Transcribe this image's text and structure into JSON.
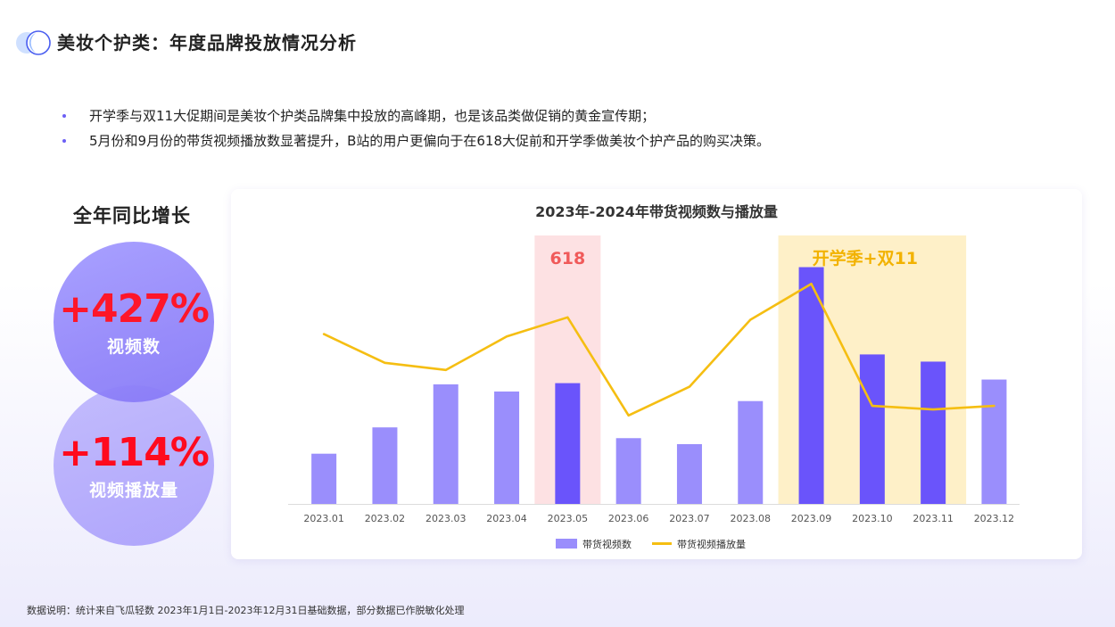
{
  "page": {
    "title": "美妆个护类：年度品牌投放情况分析",
    "bullets": [
      "开学季与双11大促期间是美妆个护类品牌集中投放的高峰期，也是该品类做促销的黄金宣传期；",
      "5月份和9月份的带货视频播放数显著提升，B站的用户更偏向于在618大促前和开学季做美妆个护产品的购买决策。"
    ],
    "footnote": "数据说明：统计来自飞瓜轻数 2023年1月1日-2023年12月31日基础数据，部分数据已作脱敏化处理"
  },
  "growth": {
    "title": "全年同比增长",
    "metrics": [
      {
        "value": "+427%",
        "label": "视频数"
      },
      {
        "value": "+114%",
        "label": "视频播放量"
      }
    ]
  },
  "colors": {
    "bar": "#9a8efc",
    "bar_highlight": "#6a54fb",
    "line": "#f5be12",
    "band_618": "#fde1e3",
    "band_school": "#fef0c8",
    "annotation_618": "#f05a5a",
    "annotation_school": "#f2b200",
    "value_red": "#ff0a1e"
  },
  "chart_data": {
    "type": "bar",
    "title": "2023年-2024年带货视频数与播放量",
    "categories": [
      "2023.01",
      "2023.02",
      "2023.03",
      "2023.04",
      "2023.05",
      "2023.06",
      "2023.07",
      "2023.08",
      "2023.09",
      "2023.10",
      "2023.11",
      "2023.12"
    ],
    "series": [
      {
        "name": "带货视频数",
        "type": "bar",
        "values": [
          21,
          32,
          50,
          47,
          50.5,
          27.5,
          25,
          43,
          99,
          62.5,
          59.5,
          52
        ],
        "highlight": [
          false,
          false,
          false,
          false,
          true,
          false,
          false,
          false,
          true,
          true,
          true,
          false
        ]
      },
      {
        "name": "带货视频播放量",
        "type": "line",
        "values": [
          71,
          59,
          56,
          70,
          78,
          37,
          49,
          77,
          92,
          41,
          39.5,
          41
        ]
      }
    ],
    "ylim": [
      0,
      100
    ],
    "grid": false,
    "legend": "bottom",
    "annotations": [
      {
        "text": "618",
        "from": "2023.05",
        "to": "2023.05"
      },
      {
        "text": "开学季+双11",
        "from": "2023.09",
        "to": "2023.11"
      }
    ]
  }
}
